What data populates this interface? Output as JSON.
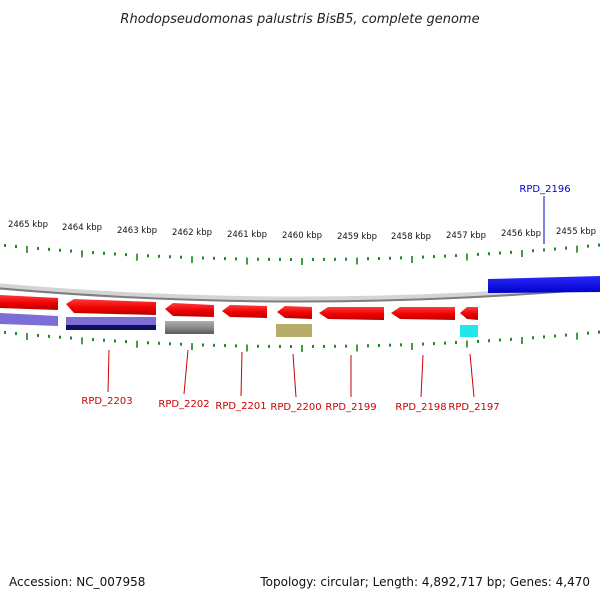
{
  "header": {
    "title": "Rhodopseudomonas palustris BisB5, complete genome"
  },
  "footer": {
    "accession_label": "Accession: NC_007958",
    "summary": "Topology: circular; Length: 4,892,717 bp; Genes: 4,470"
  },
  "colors": {
    "forward_gene": "#1010e0",
    "reverse_gene": "#ee1111",
    "reverse_label": "#cc0000",
    "forward_label": "#0000cc",
    "tick": "#0a7a0a",
    "backbone": "#808080"
  },
  "ruler": {
    "unit": "kbp",
    "labels": [
      "2465 kbp",
      "2464 kbp",
      "2463 kbp",
      "2462 kbp",
      "2461 kbp",
      "2460 kbp",
      "2459 kbp",
      "2458 kbp",
      "2457 kbp",
      "2456 kbp",
      "2455 kbp"
    ]
  },
  "genes": [
    {
      "name": "RPD_2203",
      "strand": "reverse",
      "feature_color": "#7b6fd6",
      "feature_dark": "#101060"
    },
    {
      "name": "RPD_2202",
      "strand": "reverse",
      "feature_color": "#6a6a6a"
    },
    {
      "name": "RPD_2201",
      "strand": "reverse"
    },
    {
      "name": "RPD_2200",
      "strand": "reverse",
      "feature_color": "#b7ad6b"
    },
    {
      "name": "RPD_2199",
      "strand": "reverse"
    },
    {
      "name": "RPD_2198",
      "strand": "reverse"
    },
    {
      "name": "RPD_2197",
      "strand": "reverse",
      "feature_color": "#22e6ee"
    },
    {
      "name": "RPD_2196",
      "strand": "forward"
    }
  ]
}
